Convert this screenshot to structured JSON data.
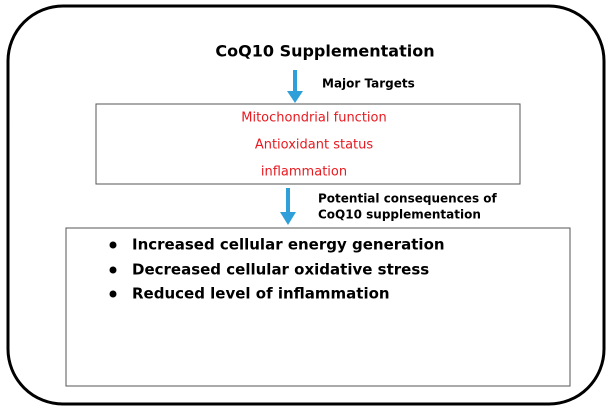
{
  "title": "CoQ10 Supplementation",
  "arrow1_label": "Major Targets",
  "targets": [
    "Mitochondrial function",
    "Antioxidant status",
    "inflammation"
  ],
  "arrow2_label": [
    "Potential consequences of",
    "CoQ10 supplementation"
  ],
  "consequences": [
    "Increased cellular energy generation",
    "Decreased cellular oxidative stress",
    "Reduced level of inflammation"
  ]
}
